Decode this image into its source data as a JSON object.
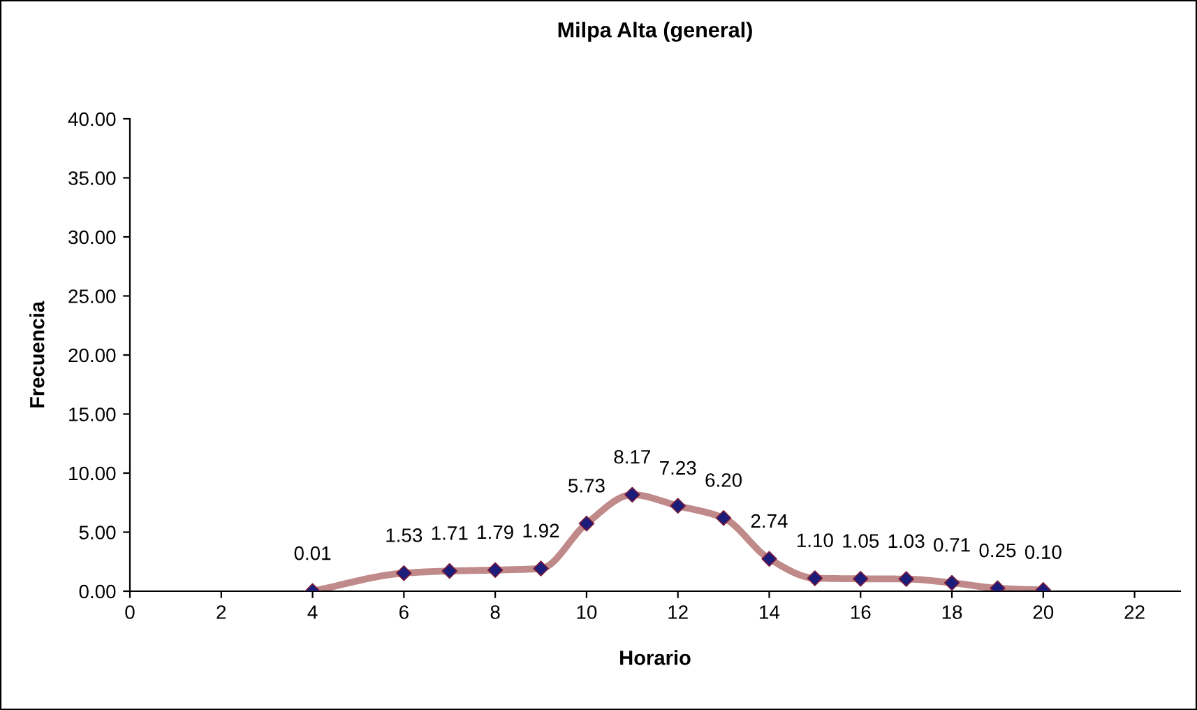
{
  "chart_data": {
    "type": "line",
    "title": "Milpa Alta (general)",
    "xlabel": "Horario",
    "ylabel": "Frecuencia",
    "x": [
      4,
      6,
      7,
      8,
      9,
      10,
      11,
      12,
      13,
      14,
      15,
      16,
      17,
      18,
      19,
      20
    ],
    "series": [
      {
        "color": "#c08a8a",
        "colors": [
          "#1c1c7a",
          "#1c1c7a",
          "#1c1c7a",
          "#1c1c7a",
          "#1c1c7a",
          "#1c1c7a",
          "#1c1c7a",
          "#1c1c7a",
          "#1c1c7a",
          "#1c1c7a",
          "#1c1c7a",
          "#1c1c7a",
          "#1c1c7a",
          "#1c1c7a",
          "#1c1c7a",
          "#1c1c7a"
        ],
        "values": [
          0.01,
          1.53,
          1.71,
          1.79,
          1.92,
          5.73,
          8.17,
          7.23,
          6.2,
          2.74,
          1.1,
          1.05,
          1.03,
          0.71,
          0.25,
          0.1
        ],
        "value_labels": [
          "0.01",
          "1.53",
          "1.71",
          "1.79",
          "1.92",
          "5.73",
          "8.17",
          "7.23",
          "6.20",
          "2.74",
          "1.10",
          "1.05",
          "1.03",
          "0.71",
          "0.25",
          "0.10"
        ]
      }
    ],
    "xlim": [
      0,
      23
    ],
    "xticks": [
      0,
      2,
      4,
      6,
      8,
      10,
      12,
      14,
      16,
      18,
      20,
      22
    ],
    "ylim": [
      0,
      40
    ],
    "yticks": [
      {
        "value": 0,
        "label": "0.00"
      },
      {
        "value": 5,
        "label": "5.00"
      },
      {
        "value": 10,
        "label": "10.00"
      },
      {
        "value": 15,
        "label": "15.00"
      },
      {
        "value": 20,
        "label": "20.00"
      },
      {
        "value": 25,
        "label": "25.00"
      },
      {
        "value": 30,
        "label": "30.00"
      },
      {
        "value": 35,
        "label": "35.00"
      },
      {
        "value": 40,
        "label": "40.00"
      }
    ],
    "marker": "diamond",
    "line_style": "solid",
    "grid": false
  }
}
